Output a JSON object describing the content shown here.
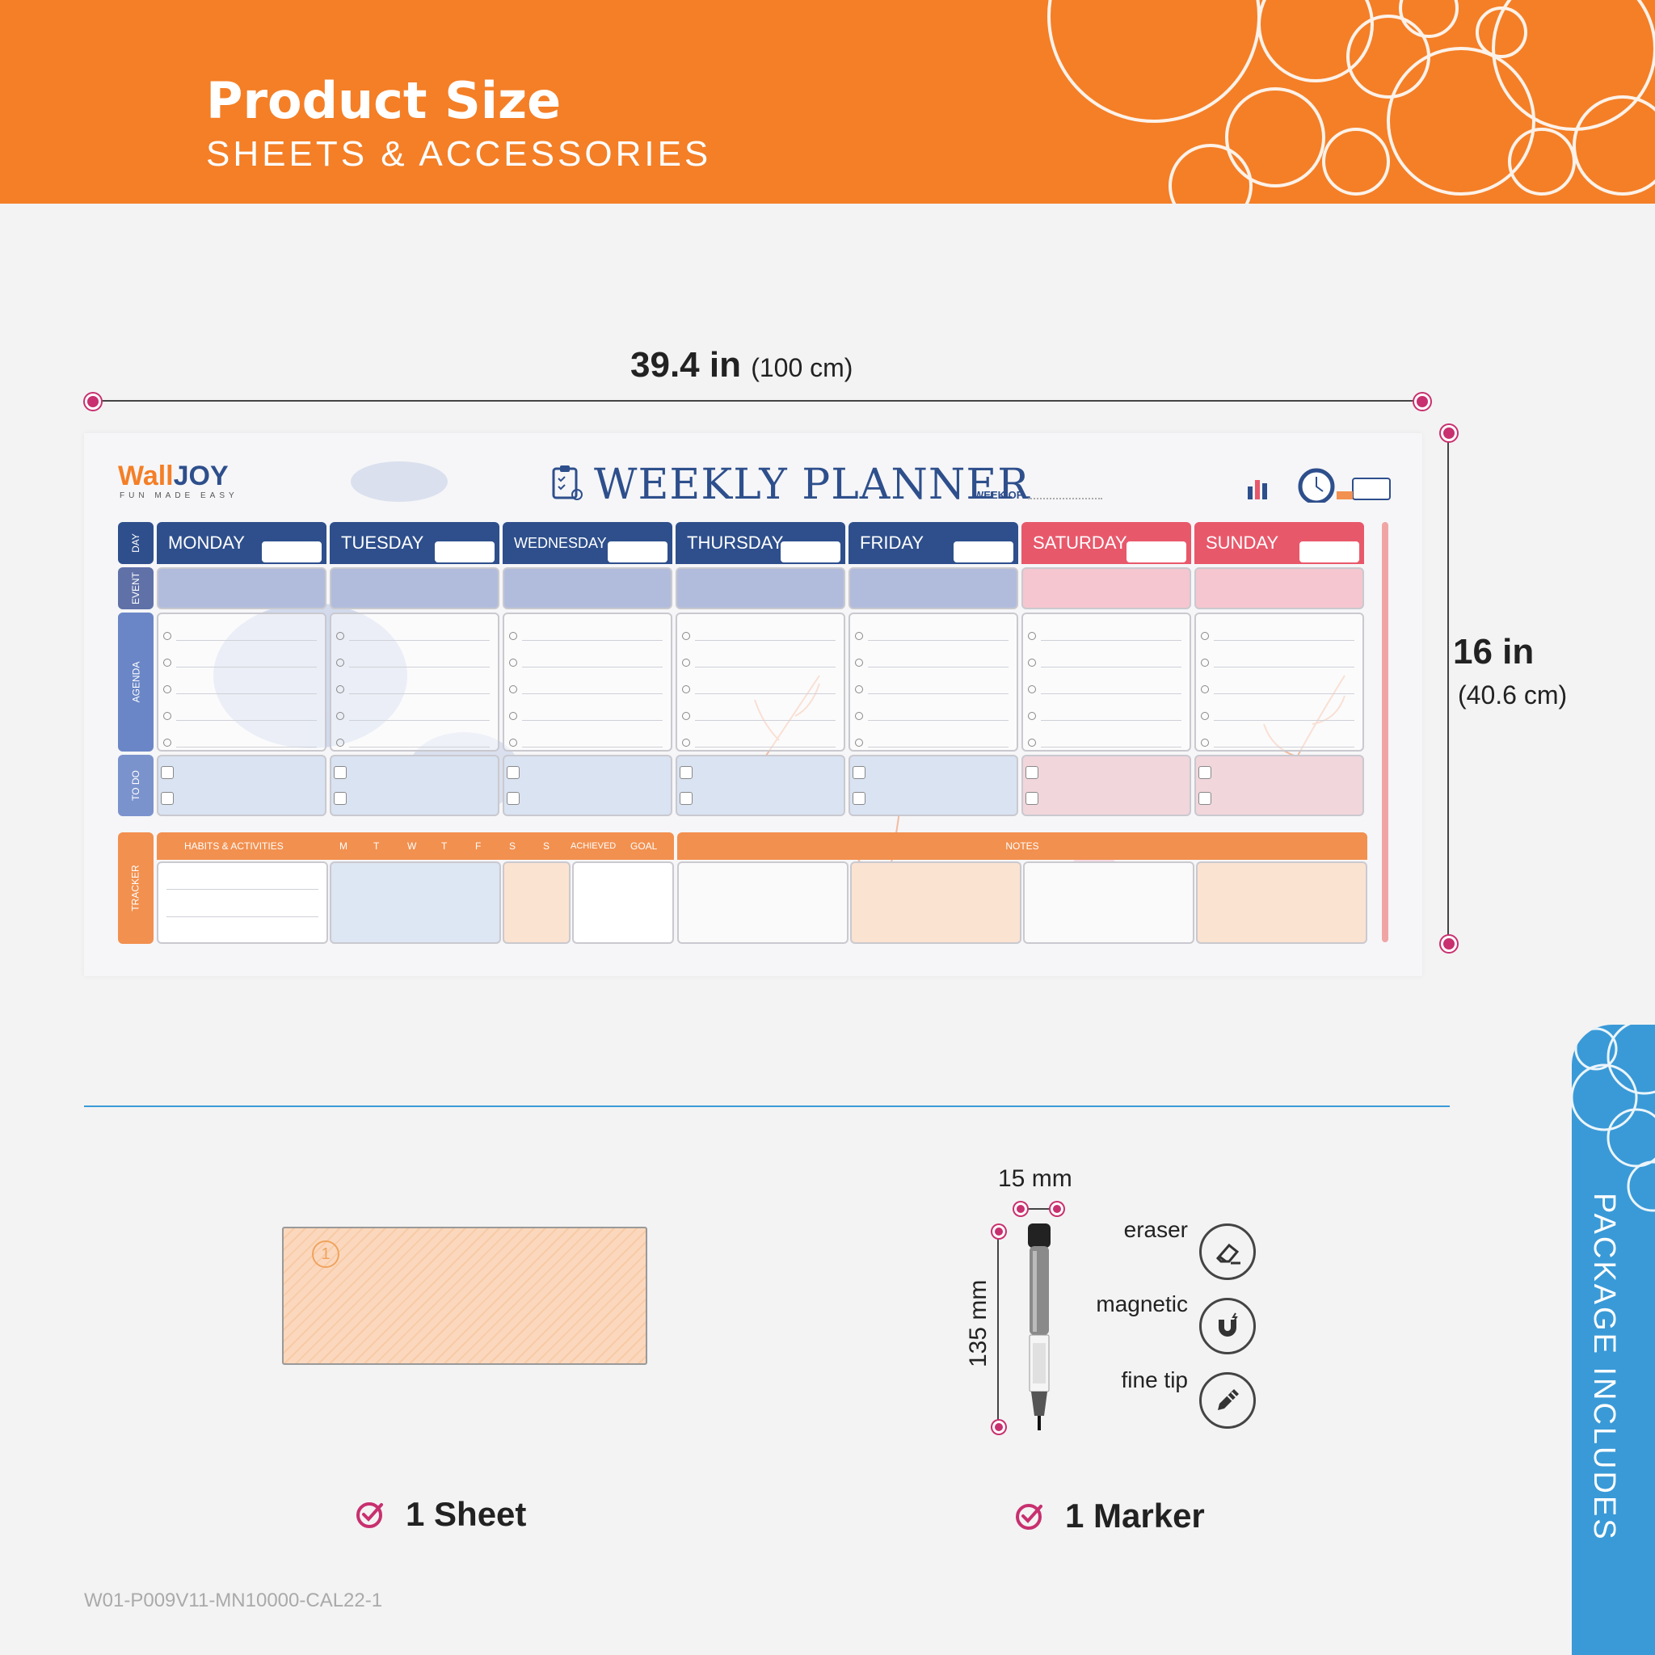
{
  "header": {
    "title": "Product Size",
    "subtitle": "SHEETS & ACCESSORIES",
    "bg_color": "#f47f27"
  },
  "dimensions": {
    "width_value": "39.4 in",
    "width_metric": "(100 cm)",
    "height_value": "16 in",
    "height_metric": "(40.6 cm)",
    "marker_color": "#c8306f"
  },
  "planner": {
    "logo_part1": "Wall",
    "logo_part2": "JOY",
    "logo_tagline": "FUN MADE EASY",
    "title": "WEEKLY PLANNER",
    "week_of": "WEEK OF",
    "row_labels": [
      "DAY",
      "EVENT",
      "AGENDA",
      "TO DO",
      "TRACKER"
    ],
    "days": [
      "MONDAY",
      "TUESDAY",
      "WEDNESDAY",
      "THURSDAY",
      "FRIDAY",
      "SATURDAY",
      "SUNDAY"
    ],
    "tracker_header": "HABITS & ACTIVITIES",
    "tracker_days": [
      "M",
      "T",
      "W",
      "T",
      "F",
      "S",
      "S"
    ],
    "tracker_achieved": "ACHIEVED",
    "tracker_goal": "GOAL",
    "notes": "NOTES",
    "weekday_color": "#2e4f8c",
    "weekend_color": "#e8586b",
    "tracker_color": "#f2904f"
  },
  "package": {
    "tab_label": "PACKAGE INCLUDES",
    "sheet_number": "1",
    "sheet_caption": "1 Sheet",
    "marker_caption": "1 Marker",
    "marker_width": "15 mm",
    "marker_length": "135 mm",
    "features": [
      {
        "label": "eraser",
        "icon": "eraser-icon"
      },
      {
        "label": "magnetic",
        "icon": "magnet-icon"
      },
      {
        "label": "fine tip",
        "icon": "pen-tip-icon"
      }
    ],
    "tab_color": "#3a9ad7"
  },
  "footer": {
    "sku": "W01-P009V11-MN10000-CAL22-1"
  }
}
